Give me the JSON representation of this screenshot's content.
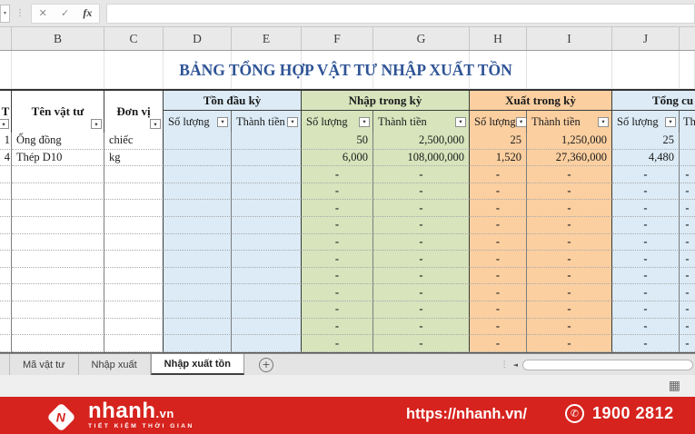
{
  "colors": {
    "brand-red": "#d6231e",
    "fill-blue": "#dcebf6",
    "fill-green": "#d7e4bc",
    "fill-orange": "#fbcfa0",
    "title-blue": "#2f5496"
  },
  "icons": {
    "namebox_arrow": "▾",
    "grip": "⋮",
    "cancel": "✕",
    "confirm": "✓",
    "fx": "fx",
    "filter_arrow": "▾",
    "add_sheet": "+",
    "scroll_left": "◄",
    "grid_view": "▦",
    "phone": "✆",
    "logo_letter": "N"
  },
  "formula_bar": {
    "value": ""
  },
  "column_headers": {
    "letters": [
      "B",
      "C",
      "D",
      "E",
      "F",
      "G",
      "H",
      "I",
      "J"
    ]
  },
  "sheet": {
    "title": "BẢNG TỔNG HỢP VẬT TƯ NHẬP XUẤT TỒN",
    "header": {
      "stt": "T",
      "name": "Tên vật tư",
      "unit": "Đơn vị",
      "groups": [
        {
          "label": "Tồn đầu kỳ"
        },
        {
          "label": "Nhập trong kỳ"
        },
        {
          "label": "Xuất trong kỳ"
        },
        {
          "label": "Tổng cu"
        }
      ],
      "sub": {
        "qty": "Số lượng",
        "amount": "Thành tiền"
      }
    },
    "rows": [
      {
        "stt": "1",
        "name": "Ống đồng",
        "unit": "chiếc",
        "ton_qty": "",
        "ton_amt": "",
        "in_qty": "50",
        "in_amt": "2,500,000",
        "out_qty": "25",
        "out_amt": "1,250,000",
        "end_qty": "25",
        "end_amt": ""
      },
      {
        "stt": "4",
        "name": "Thép D10",
        "unit": "kg",
        "ton_qty": "",
        "ton_amt": "",
        "in_qty": "6,000",
        "in_amt": "108,000,000",
        "out_qty": "1,520",
        "out_amt": "27,360,000",
        "end_qty": "4,480",
        "end_amt": ""
      },
      {
        "stt": "",
        "name": "",
        "unit": "",
        "ton_qty": "",
        "ton_amt": "",
        "in_qty": "-",
        "in_amt": "-",
        "out_qty": "-",
        "out_amt": "-",
        "end_qty": "-",
        "end_amt": "-"
      },
      {
        "stt": "",
        "name": "",
        "unit": "",
        "ton_qty": "",
        "ton_amt": "",
        "in_qty": "-",
        "in_amt": "-",
        "out_qty": "-",
        "out_amt": "-",
        "end_qty": "-",
        "end_amt": "-"
      },
      {
        "stt": "",
        "name": "",
        "unit": "",
        "ton_qty": "",
        "ton_amt": "",
        "in_qty": "-",
        "in_amt": "-",
        "out_qty": "-",
        "out_amt": "-",
        "end_qty": "-",
        "end_amt": "-"
      },
      {
        "stt": "",
        "name": "",
        "unit": "",
        "ton_qty": "",
        "ton_amt": "",
        "in_qty": "-",
        "in_amt": "-",
        "out_qty": "-",
        "out_amt": "-",
        "end_qty": "-",
        "end_amt": "-"
      },
      {
        "stt": "",
        "name": "",
        "unit": "",
        "ton_qty": "",
        "ton_amt": "",
        "in_qty": "-",
        "in_amt": "-",
        "out_qty": "-",
        "out_amt": "-",
        "end_qty": "-",
        "end_amt": "-"
      },
      {
        "stt": "",
        "name": "",
        "unit": "",
        "ton_qty": "",
        "ton_amt": "",
        "in_qty": "-",
        "in_amt": "-",
        "out_qty": "-",
        "out_amt": "-",
        "end_qty": "-",
        "end_amt": "-"
      },
      {
        "stt": "",
        "name": "",
        "unit": "",
        "ton_qty": "",
        "ton_amt": "",
        "in_qty": "-",
        "in_amt": "-",
        "out_qty": "-",
        "out_amt": "-",
        "end_qty": "-",
        "end_amt": "-"
      },
      {
        "stt": "",
        "name": "",
        "unit": "",
        "ton_qty": "",
        "ton_amt": "",
        "in_qty": "-",
        "in_amt": "-",
        "out_qty": "-",
        "out_amt": "-",
        "end_qty": "-",
        "end_amt": "-"
      },
      {
        "stt": "",
        "name": "",
        "unit": "",
        "ton_qty": "",
        "ton_amt": "",
        "in_qty": "-",
        "in_amt": "-",
        "out_qty": "-",
        "out_amt": "-",
        "end_qty": "-",
        "end_amt": "-"
      },
      {
        "stt": "",
        "name": "",
        "unit": "",
        "ton_qty": "",
        "ton_amt": "",
        "in_qty": "-",
        "in_amt": "-",
        "out_qty": "-",
        "out_amt": "-",
        "end_qty": "-",
        "end_amt": "-"
      },
      {
        "stt": "",
        "name": "",
        "unit": "",
        "ton_qty": "",
        "ton_amt": "",
        "in_qty": "-",
        "in_amt": "-",
        "out_qty": "-",
        "out_amt": "-",
        "end_qty": "-",
        "end_amt": "-"
      }
    ]
  },
  "sheet_tabs": {
    "tabs": [
      {
        "label": "Mã vật tư"
      },
      {
        "label": "Nhập xuất"
      },
      {
        "label": "Nhập xuất tồn"
      }
    ]
  },
  "footer": {
    "brand": "nhanh",
    "brand_suffix": ".vn",
    "tagline": "TIẾT KIỆM THỜI GIAN",
    "url": "https://nhanh.vn/",
    "phone": "1900 2812"
  }
}
